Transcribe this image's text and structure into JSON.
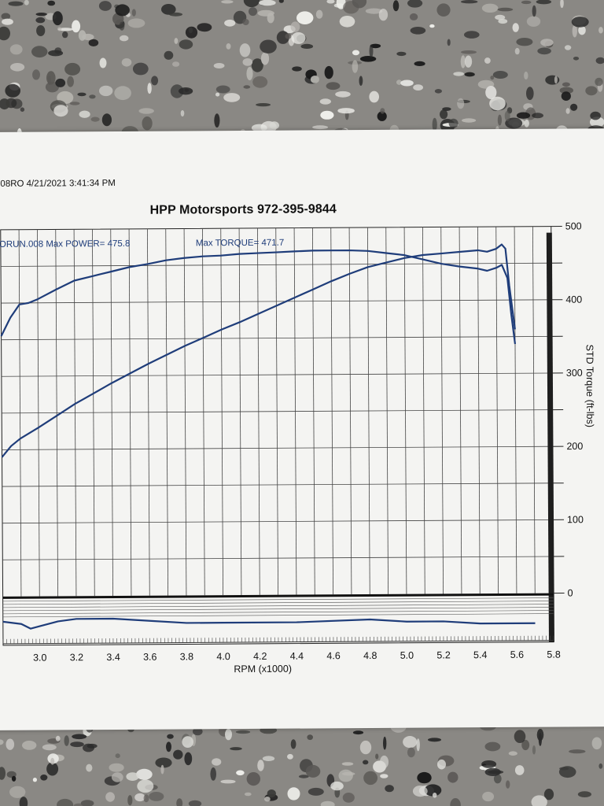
{
  "header": {
    "run_info": "08RO  4/21/2021 3:41:34 PM",
    "title": "HPP Motorsports  972-395-9844"
  },
  "colors": {
    "curve": "#1f3d7a",
    "grid": "#333333",
    "paper": "#f4f4f2"
  },
  "chart_data": {
    "type": "line",
    "title": "HPP Motorsports  972-395-9844",
    "xlabel": "RPM (x1000)",
    "ylabel": "STD Torque (ft-lbs)",
    "xlim": [
      2.8,
      5.8
    ],
    "ylim": [
      0,
      500
    ],
    "x_ticks": [
      "3.0",
      "3.2",
      "3.4",
      "3.6",
      "3.8",
      "4.0",
      "4.2",
      "4.4",
      "4.6",
      "4.8",
      "5.0",
      "5.2",
      "5.4",
      "5.6",
      "5.8"
    ],
    "y_ticks": [
      "0",
      "100",
      "200",
      "300",
      "400",
      "500"
    ],
    "annotations": {
      "power": "ORUN.008  Max POWER= 475.8",
      "torque": "Max TORQUE= 471.7"
    },
    "series": [
      {
        "key": "torque",
        "x": [
          2.8,
          2.85,
          2.9,
          2.95,
          3.0,
          3.1,
          3.2,
          3.3,
          3.4,
          3.5,
          3.6,
          3.7,
          3.8,
          3.9,
          4.0,
          4.1,
          4.2,
          4.3,
          4.4,
          4.5,
          4.6,
          4.7,
          4.8,
          4.9,
          5.0,
          5.1,
          5.2,
          5.3,
          5.4,
          5.45,
          5.5,
          5.53,
          5.56,
          5.58,
          5.6
        ],
        "values": [
          355,
          380,
          398,
          400,
          405,
          418,
          430,
          436,
          442,
          448,
          452,
          457,
          460,
          462,
          463,
          465,
          466,
          467,
          468,
          469,
          469,
          469,
          468,
          465,
          462,
          456,
          450,
          446,
          443,
          440,
          444,
          448,
          430,
          380,
          340
        ]
      },
      {
        "key": "power",
        "x": [
          2.8,
          2.85,
          2.9,
          3.0,
          3.1,
          3.2,
          3.3,
          3.4,
          3.5,
          3.6,
          3.7,
          3.8,
          3.9,
          4.0,
          4.1,
          4.2,
          4.3,
          4.4,
          4.5,
          4.6,
          4.7,
          4.8,
          4.9,
          5.0,
          5.1,
          5.2,
          5.3,
          5.4,
          5.45,
          5.5,
          5.53,
          5.55,
          5.57,
          5.6
        ],
        "values": [
          190,
          205,
          215,
          230,
          246,
          262,
          276,
          290,
          303,
          316,
          328,
          340,
          351,
          362,
          372,
          383,
          394,
          405,
          416,
          427,
          437,
          446,
          452,
          458,
          462,
          464,
          466,
          468,
          466,
          470,
          475.8,
          470,
          420,
          360
        ]
      },
      {
        "key": "afr",
        "x": [
          2.8,
          2.9,
          2.95,
          3.0,
          3.1,
          3.2,
          3.4,
          3.6,
          3.8,
          4.0,
          4.4,
          4.8,
          5.0,
          5.2,
          5.4,
          5.6,
          5.7
        ],
        "values": [
          -45,
          -46,
          -48,
          -47,
          -45,
          -44,
          -44,
          -45,
          -46,
          -46,
          -46,
          -45,
          -46,
          -46,
          -47,
          -47,
          -47
        ]
      }
    ]
  }
}
